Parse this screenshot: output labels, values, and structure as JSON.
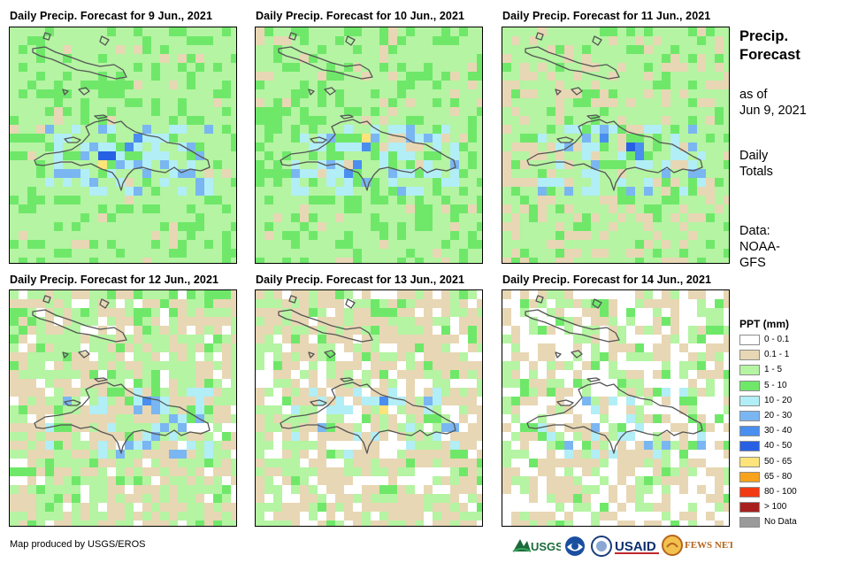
{
  "panels": [
    {
      "title": "Daily Precip. Forecast for 9 Jun., 2021"
    },
    {
      "title": "Daily Precip. Forecast for 10 Jun., 2021"
    },
    {
      "title": "Daily Precip. Forecast for 11 Jun., 2021"
    },
    {
      "title": "Daily Precip. Forecast for 12 Jun., 2021"
    },
    {
      "title": "Daily Precip. Forecast for 13 Jun., 2021"
    },
    {
      "title": "Daily Precip. Forecast for 14 Jun., 2021"
    }
  ],
  "sidebar": {
    "title_line1": "Precip.",
    "title_line2": "Forecast",
    "asof_line1": "as of",
    "asof_line2": "Jun 9, 2021",
    "totals_line1": "Daily",
    "totals_line2": "Totals",
    "data_line1": "Data:",
    "data_line2": "NOAA-",
    "data_line3": "GFS"
  },
  "legend": {
    "title": "PPT (mm)",
    "items": [
      {
        "label": "0 - 0.1",
        "color": "#ffffff"
      },
      {
        "label": "0.1 - 1",
        "color": "#e8d7b4"
      },
      {
        "label": "1 - 5",
        "color": "#b4f4a2"
      },
      {
        "label": "5 - 10",
        "color": "#6fe86a"
      },
      {
        "label": "10 - 20",
        "color": "#b2eef6"
      },
      {
        "label": "20 - 30",
        "color": "#7ab6f1"
      },
      {
        "label": "30 - 40",
        "color": "#4a8ef0"
      },
      {
        "label": "40 - 50",
        "color": "#2860e4"
      },
      {
        "label": "50 - 65",
        "color": "#fde47a"
      },
      {
        "label": "65 - 80",
        "color": "#f9a21c"
      },
      {
        "label": "80 - 100",
        "color": "#f23b12"
      },
      {
        "label": "> 100",
        "color": "#a8201e"
      },
      {
        "label": "No Data",
        "color": "#9a9a9a"
      }
    ]
  },
  "footer": {
    "credit": "Map produced by USGS/EROS",
    "logo_usgs": "USGS",
    "logo_noaa": "NOAA",
    "logo_usaid": "USAID",
    "logo_fewsnet": "FEWS NET"
  }
}
